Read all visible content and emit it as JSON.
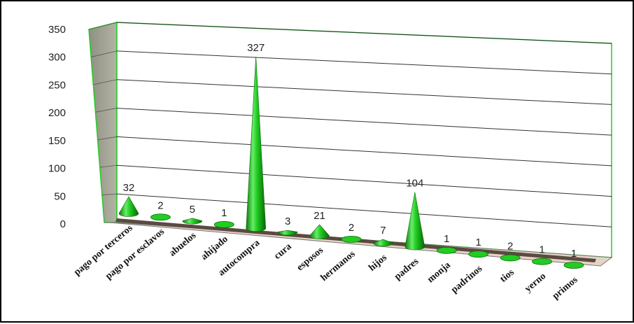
{
  "chart_data": {
    "type": "bar",
    "style": "3d-cone",
    "categories": [
      "pago por terceros",
      "pago por esclavos",
      "abuelos",
      "ahijado",
      "autocompra",
      "cura",
      "esposos",
      "hermanos",
      "hijos",
      "padres",
      "monja",
      "padrinos",
      "tios",
      "yerno",
      "primos"
    ],
    "values": [
      32,
      2,
      5,
      1,
      327,
      3,
      21,
      2,
      7,
      104,
      1,
      1,
      2,
      1,
      1
    ],
    "data_labels": [
      "32",
      "2",
      "5",
      "1",
      "327",
      "3",
      "21",
      "2",
      "7",
      "104",
      "1",
      "1",
      "2",
      "1",
      "1"
    ],
    "yticks": [
      "0",
      "50",
      "100",
      "150",
      "200",
      "250",
      "300",
      "350"
    ],
    "ylim": [
      0,
      350
    ],
    "grid": true,
    "legend": "none",
    "colors": {
      "cone": "#22cc22",
      "cone_light": "#aaffaa",
      "cone_dark": "#0a7a0a",
      "wall": "#9e9e90",
      "floor": "#e6d3c6",
      "wall_edge": "#22cc22"
    }
  }
}
